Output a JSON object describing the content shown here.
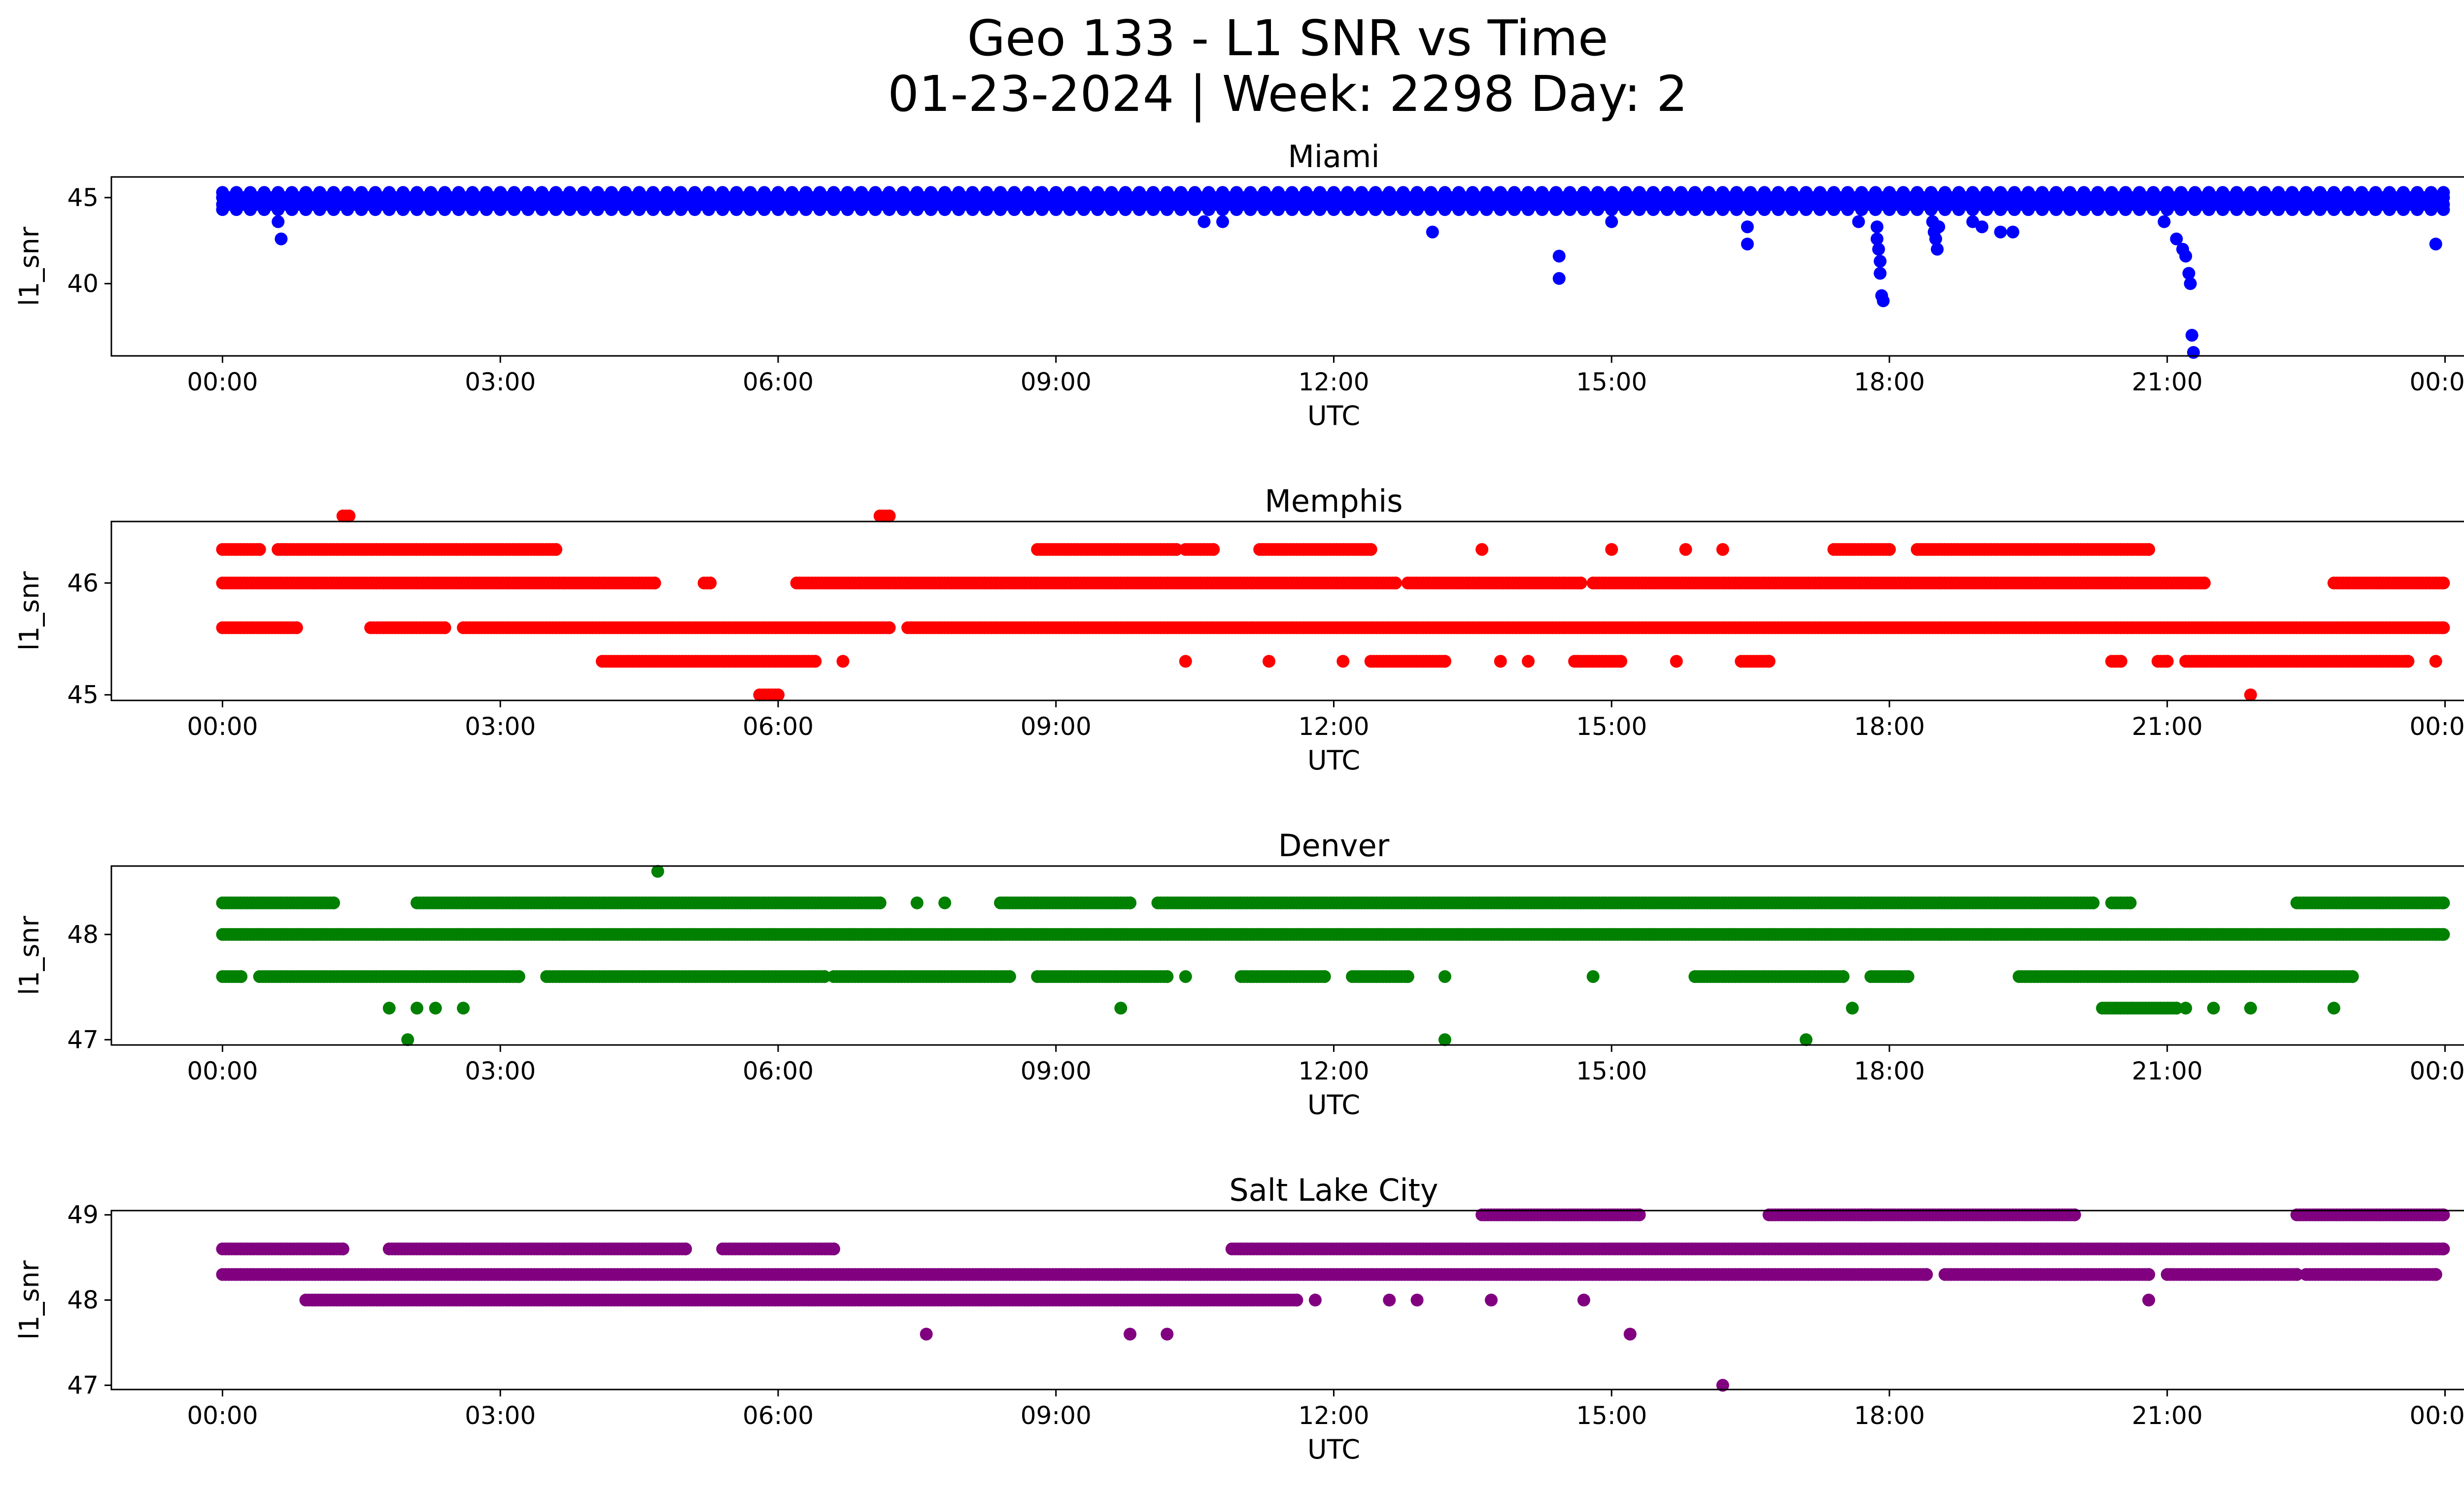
{
  "title_line1": "Geo 133 - L1 SNR vs Time",
  "title_line2": "01-23-2024 | Week: 2298 Day: 2",
  "chart_data": [
    {
      "type": "scatter",
      "title": "Miami",
      "xlabel": "UTC",
      "ylabel": "l1_snr",
      "color": "#0000ff",
      "xlim": [
        "-01:12",
        "25:12"
      ],
      "xticks": [
        "00:00",
        "03:00",
        "06:00",
        "09:00",
        "12:00",
        "15:00",
        "18:00",
        "21:00",
        "00:00"
      ],
      "ylim": [
        35.8,
        46.2
      ],
      "yticks": [
        40,
        45
      ],
      "grid": false,
      "bands": [
        {
          "y": 45.0,
          "from": "00:00",
          "to": "23:59",
          "note": "dense"
        },
        {
          "y": 44.6,
          "from": "00:00",
          "to": "23:59",
          "note": "dense"
        },
        {
          "y": 45.3,
          "from": "00:00",
          "to": "23:59",
          "note": "sparse"
        },
        {
          "y": 44.3,
          "from": "00:00",
          "to": "23:59",
          "note": "sparse"
        }
      ],
      "outliers": [
        {
          "x": "00:36",
          "y": 43.6
        },
        {
          "x": "00:38",
          "y": 42.6
        },
        {
          "x": "10:36",
          "y": 43.6
        },
        {
          "x": "10:48",
          "y": 43.6
        },
        {
          "x": "13:04",
          "y": 43.0
        },
        {
          "x": "14:26",
          "y": 41.6
        },
        {
          "x": "14:26",
          "y": 40.3
        },
        {
          "x": "15:00",
          "y": 43.6
        },
        {
          "x": "16:28",
          "y": 43.3
        },
        {
          "x": "16:28",
          "y": 42.3
        },
        {
          "x": "17:40",
          "y": 43.6
        },
        {
          "x": "17:52",
          "y": 43.3
        },
        {
          "x": "17:52",
          "y": 42.6
        },
        {
          "x": "17:53",
          "y": 42.0
        },
        {
          "x": "17:54",
          "y": 41.3
        },
        {
          "x": "17:54",
          "y": 40.6
        },
        {
          "x": "17:55",
          "y": 39.3
        },
        {
          "x": "17:56",
          "y": 39.0
        },
        {
          "x": "18:28",
          "y": 43.6
        },
        {
          "x": "18:29",
          "y": 43.0
        },
        {
          "x": "18:30",
          "y": 42.6
        },
        {
          "x": "18:31",
          "y": 42.0
        },
        {
          "x": "18:32",
          "y": 43.3
        },
        {
          "x": "18:54",
          "y": 43.6
        },
        {
          "x": "19:00",
          "y": 43.3
        },
        {
          "x": "19:12",
          "y": 43.0
        },
        {
          "x": "19:20",
          "y": 43.0
        },
        {
          "x": "20:58",
          "y": 43.6
        },
        {
          "x": "21:06",
          "y": 42.6
        },
        {
          "x": "21:10",
          "y": 42.0
        },
        {
          "x": "21:12",
          "y": 41.6
        },
        {
          "x": "21:14",
          "y": 40.6
        },
        {
          "x": "21:15",
          "y": 40.0
        },
        {
          "x": "21:16",
          "y": 37.0
        },
        {
          "x": "21:17",
          "y": 36.0
        },
        {
          "x": "23:54",
          "y": 42.3
        }
      ]
    },
    {
      "type": "scatter",
      "title": "Memphis",
      "xlabel": "UTC",
      "ylabel": "l1_snr",
      "color": "#ff0000",
      "xlim": [
        "-01:12",
        "25:12"
      ],
      "xticks": [
        "00:00",
        "03:00",
        "06:00",
        "09:00",
        "12:00",
        "15:00",
        "18:00",
        "21:00",
        "00:00"
      ],
      "ylim": [
        44.95,
        46.55
      ],
      "yticks": [
        45,
        46
      ],
      "grid": false,
      "bands": [
        {
          "y": 46.0,
          "segments": [
            [
              "00:00",
              "04:40"
            ],
            [
              "05:12",
              "05:16"
            ],
            [
              "06:12",
              "12:40"
            ],
            [
              "12:48",
              "14:40"
            ],
            [
              "14:48",
              "21:24"
            ],
            [
              "22:48",
              "23:59"
            ]
          ]
        },
        {
          "y": 45.6,
          "segments": [
            [
              "00:00",
              "00:48"
            ],
            [
              "01:36",
              "02:24"
            ],
            [
              "02:36",
              "07:12"
            ],
            [
              "07:24",
              "23:59"
            ]
          ]
        },
        {
          "y": 45.3,
          "segments": [
            [
              "04:06",
              "06:24"
            ],
            [
              "12:24",
              "13:12"
            ],
            [
              "14:36",
              "15:06"
            ],
            [
              "16:24",
              "16:42"
            ],
            [
              "20:24",
              "20:30"
            ],
            [
              "20:54",
              "21:00"
            ],
            [
              "21:12",
              "23:36"
            ]
          ]
        },
        {
          "y": 46.3,
          "segments": [
            [
              "00:00",
              "00:24"
            ],
            [
              "00:36",
              "03:36"
            ],
            [
              "08:48",
              "10:18"
            ],
            [
              "10:24",
              "10:42"
            ],
            [
              "11:12",
              "12:24"
            ],
            [
              "17:24",
              "18:00"
            ],
            [
              "18:18",
              "20:48"
            ]
          ]
        },
        {
          "y": 46.6,
          "segments": [
            [
              "01:18",
              "01:22"
            ],
            [
              "07:06",
              "07:12"
            ]
          ]
        },
        {
          "y": 45.0,
          "segments": [
            [
              "05:48",
              "06:00"
            ]
          ]
        }
      ],
      "outliers": [
        {
          "x": "06:42",
          "y": 45.3
        },
        {
          "x": "10:24",
          "y": 45.3
        },
        {
          "x": "11:18",
          "y": 45.3
        },
        {
          "x": "12:06",
          "y": 45.3
        },
        {
          "x": "13:36",
          "y": 46.3
        },
        {
          "x": "13:48",
          "y": 45.3
        },
        {
          "x": "14:06",
          "y": 45.3
        },
        {
          "x": "15:00",
          "y": 46.3
        },
        {
          "x": "15:42",
          "y": 45.3
        },
        {
          "x": "15:48",
          "y": 46.3
        },
        {
          "x": "16:12",
          "y": 46.3
        },
        {
          "x": "21:54",
          "y": 45.0
        },
        {
          "x": "23:54",
          "y": 45.3
        }
      ]
    },
    {
      "type": "scatter",
      "title": "Denver",
      "xlabel": "UTC",
      "ylabel": "l1_snr",
      "color": "#008000",
      "xlim": [
        "-01:12",
        "25:12"
      ],
      "xticks": [
        "00:00",
        "03:00",
        "06:00",
        "09:00",
        "12:00",
        "15:00",
        "18:00",
        "21:00",
        "00:00"
      ],
      "ylim": [
        46.95,
        48.65
      ],
      "yticks": [
        47,
        48
      ],
      "grid": false,
      "bands": [
        {
          "y": 48.0,
          "segments": [
            [
              "00:00",
              "23:59"
            ]
          ]
        },
        {
          "y": 48.3,
          "segments": [
            [
              "00:00",
              "01:12"
            ],
            [
              "02:06",
              "07:06"
            ],
            [
              "08:24",
              "09:48"
            ],
            [
              "10:06",
              "20:12"
            ],
            [
              "20:24",
              "20:36"
            ],
            [
              "22:24",
              "23:59"
            ]
          ]
        },
        {
          "y": 47.6,
          "segments": [
            [
              "00:00",
              "00:12"
            ],
            [
              "00:24",
              "03:12"
            ],
            [
              "03:30",
              "06:30"
            ],
            [
              "06:36",
              "08:30"
            ],
            [
              "08:48",
              "10:12"
            ],
            [
              "11:00",
              "11:54"
            ],
            [
              "12:12",
              "12:48"
            ],
            [
              "15:54",
              "17:30"
            ],
            [
              "17:48",
              "18:12"
            ],
            [
              "19:24",
              "23:00"
            ]
          ]
        },
        {
          "y": 47.3,
          "segments": [
            [
              "20:18",
              "21:06"
            ]
          ]
        }
      ],
      "outliers": [
        {
          "x": "01:48",
          "y": 47.3
        },
        {
          "x": "02:00",
          "y": 47.0
        },
        {
          "x": "02:06",
          "y": 47.3
        },
        {
          "x": "02:18",
          "y": 47.3
        },
        {
          "x": "02:36",
          "y": 47.3
        },
        {
          "x": "04:42",
          "y": 48.6
        },
        {
          "x": "07:30",
          "y": 48.3
        },
        {
          "x": "07:48",
          "y": 48.3
        },
        {
          "x": "09:42",
          "y": 47.3
        },
        {
          "x": "10:24",
          "y": 47.6
        },
        {
          "x": "13:12",
          "y": 47.6
        },
        {
          "x": "13:12",
          "y": 47.0
        },
        {
          "x": "14:48",
          "y": 47.6
        },
        {
          "x": "17:06",
          "y": 47.0
        },
        {
          "x": "17:36",
          "y": 47.3
        },
        {
          "x": "21:12",
          "y": 47.3
        },
        {
          "x": "21:30",
          "y": 47.3
        },
        {
          "x": "21:54",
          "y": 47.3
        },
        {
          "x": "22:48",
          "y": 47.3
        }
      ]
    },
    {
      "type": "scatter",
      "title": "Salt Lake City",
      "xlabel": "UTC",
      "ylabel": "l1_snr",
      "color": "#800080",
      "xlim": [
        "-01:12",
        "25:12"
      ],
      "xticks": [
        "00:00",
        "03:00",
        "06:00",
        "09:00",
        "12:00",
        "15:00",
        "18:00",
        "21:00",
        "00:00"
      ],
      "ylim": [
        46.95,
        49.05
      ],
      "yticks": [
        47,
        48,
        49
      ],
      "grid": false,
      "bands": [
        {
          "y": 48.3,
          "segments": [
            [
              "00:00",
              "18:24"
            ],
            [
              "18:36",
              "20:48"
            ],
            [
              "21:00",
              "22:24"
            ],
            [
              "22:30",
              "23:54"
            ]
          ]
        },
        {
          "y": 48.6,
          "segments": [
            [
              "00:00",
              "01:18"
            ],
            [
              "01:48",
              "05:00"
            ],
            [
              "05:24",
              "06:36"
            ],
            [
              "10:54",
              "23:59"
            ]
          ]
        },
        {
          "y": 48.0,
          "segments": [
            [
              "00:54",
              "11:36"
            ]
          ]
        },
        {
          "y": 49.0,
          "segments": [
            [
              "13:36",
              "15:18"
            ],
            [
              "16:42",
              "17:48"
            ],
            [
              "17:42",
              "20:00"
            ],
            [
              "22:24",
              "23:59"
            ]
          ]
        }
      ],
      "outliers": [
        {
          "x": "07:36",
          "y": 47.6
        },
        {
          "x": "09:48",
          "y": 47.6
        },
        {
          "x": "10:12",
          "y": 47.6
        },
        {
          "x": "11:48",
          "y": 48.0
        },
        {
          "x": "12:36",
          "y": 48.0
        },
        {
          "x": "12:54",
          "y": 48.0
        },
        {
          "x": "13:42",
          "y": 48.0
        },
        {
          "x": "14:42",
          "y": 48.0
        },
        {
          "x": "15:12",
          "y": 47.6
        },
        {
          "x": "16:12",
          "y": 47.0
        },
        {
          "x": "20:48",
          "y": 48.0
        },
        {
          "x": "23:54",
          "y": 48.3
        }
      ]
    }
  ]
}
